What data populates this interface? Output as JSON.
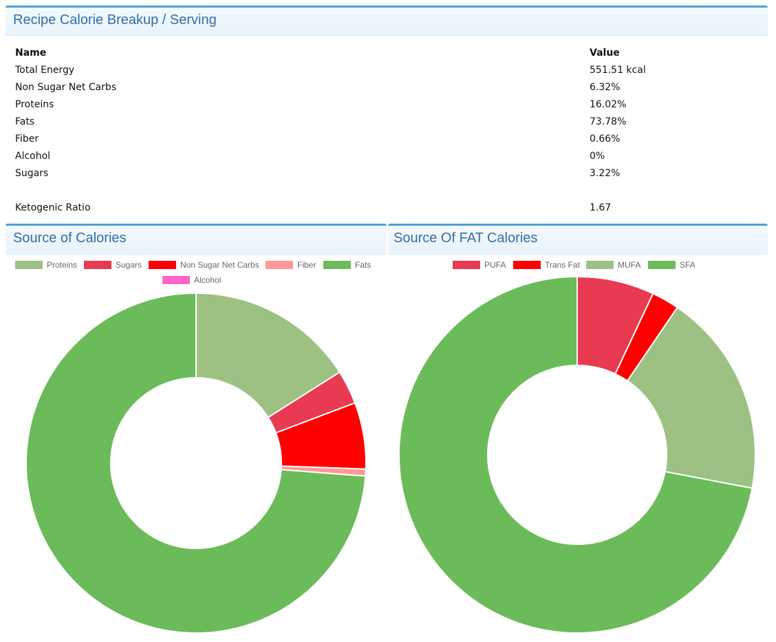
{
  "nutrition": {
    "title": "Recipe Calorie Breakup / Serving",
    "header_name": "Name",
    "header_value": "Value",
    "rows": [
      {
        "name": "Total Energy",
        "value": "551.51 kcal"
      },
      {
        "name": "Non Sugar Net Carbs",
        "value": "6.32%"
      },
      {
        "name": "Proteins",
        "value": "16.02%"
      },
      {
        "name": "Fats",
        "value": "73.78%"
      },
      {
        "name": "Fiber",
        "value": "0.66%"
      },
      {
        "name": "Alcohol",
        "value": "0%"
      },
      {
        "name": "Sugars",
        "value": "3.22%"
      }
    ],
    "keto_label": "Ketogenic Ratio",
    "keto_value": "1.67"
  },
  "chart_data": [
    {
      "type": "pie",
      "variant": "doughnut",
      "title": "Source of Calories",
      "legend_position": "top",
      "slices": [
        {
          "label": "Proteins",
          "value": 16.02,
          "color": "#9dc183"
        },
        {
          "label": "Sugars",
          "value": 3.22,
          "color": "#e83a50"
        },
        {
          "label": "Non Sugar Net Carbs",
          "value": 6.32,
          "color": "#ff0000"
        },
        {
          "label": "Fiber",
          "value": 0.66,
          "color": "#ff9896"
        },
        {
          "label": "Fats",
          "value": 73.78,
          "color": "#6cbb5a"
        },
        {
          "label": "Alcohol",
          "value": 0,
          "color": "#ff66cc"
        }
      ]
    },
    {
      "type": "pie",
      "variant": "doughnut",
      "title": "Source Of FAT Calories",
      "legend_position": "top",
      "slices": [
        {
          "label": "PUFA",
          "value": 7.0,
          "color": "#e83a50"
        },
        {
          "label": "Trans Fat",
          "value": 2.5,
          "color": "#ff0000"
        },
        {
          "label": "MUFA",
          "value": 18.5,
          "color": "#9dc183"
        },
        {
          "label": "SFA",
          "value": 72.0,
          "color": "#6cbb5a"
        }
      ]
    }
  ]
}
